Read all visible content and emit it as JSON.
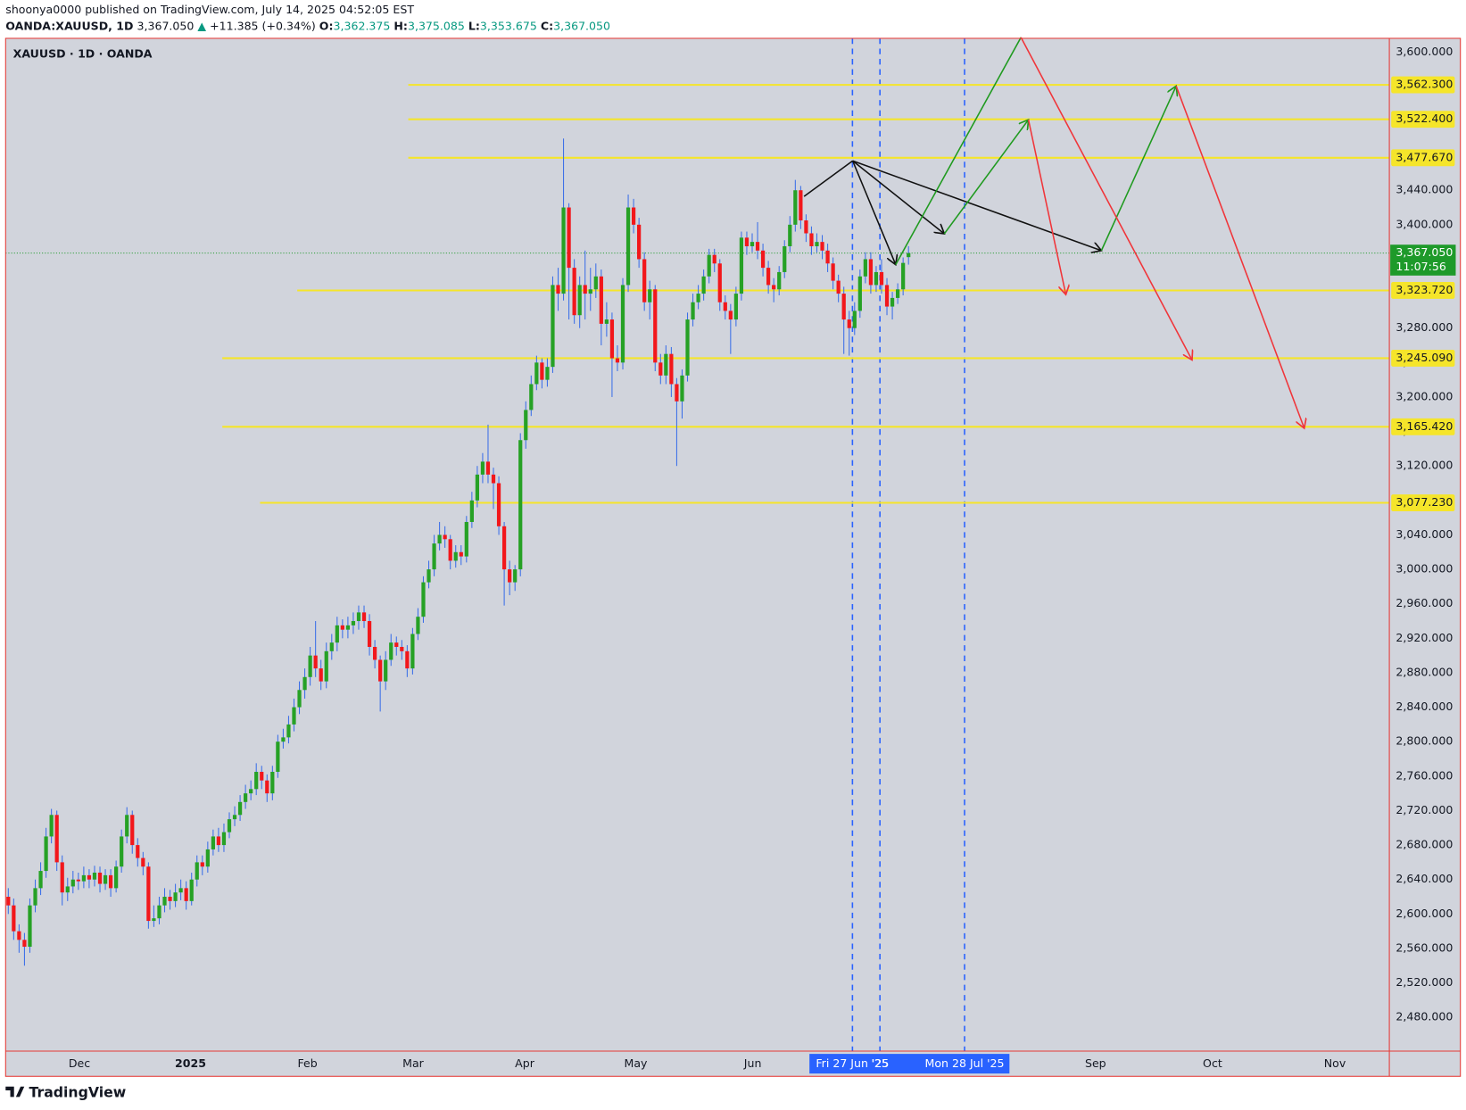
{
  "header": {
    "publisher": "shoonya0000 published on TradingView.com, July 14, 2025 04:52:05 EST",
    "symbol": "OANDA:XAUUSD, 1D",
    "price": "3,367.050",
    "arrow": "▲",
    "change": "+11.385 (+0.34%)",
    "ohlc": [
      [
        "O:",
        "3,362.375"
      ],
      [
        "H:",
        "3,375.085"
      ],
      [
        "L:",
        "3,353.675"
      ],
      [
        "C:",
        "3,367.050"
      ]
    ],
    "brand": "TradingView"
  },
  "chart_data": {
    "type": "candlestick",
    "title": "XAUUSD · 1D · OANDA",
    "up_color": "#26a125",
    "down_color": "#f2171b",
    "wick_color": "#3a6ee8",
    "open": [
      2620,
      2610,
      2580,
      2570,
      2562,
      2610,
      2630,
      2650,
      2690,
      2715,
      2660,
      2625,
      2632,
      2640,
      2638,
      2645,
      2640,
      2648,
      2635,
      2645,
      2630,
      2655,
      2690,
      2715,
      2680,
      2665,
      2655,
      2592,
      2595,
      2610,
      2620,
      2615,
      2625,
      2630,
      2615,
      2640,
      2660,
      2655,
      2675,
      2690,
      2680,
      2695,
      2710,
      2715,
      2730,
      2740,
      2745,
      2765,
      2755,
      2740,
      2765,
      2800,
      2805,
      2820,
      2840,
      2860,
      2875,
      2900,
      2885,
      2870,
      2905,
      2915,
      2935,
      2930,
      2935,
      2940,
      2950,
      2940,
      2910,
      2895,
      2870,
      2895,
      2915,
      2910,
      2905,
      2885,
      2925,
      2945,
      2985,
      3000,
      3030,
      3040,
      3035,
      3010,
      3020,
      3015,
      3055,
      3080,
      3110,
      3125,
      3110,
      3100,
      3050,
      3000,
      2985,
      3000,
      3150,
      3185,
      3215,
      3240,
      3220,
      3235,
      3330,
      3320,
      3420,
      3350,
      3295,
      3330,
      3320,
      3325,
      3340,
      3285,
      3290,
      3245,
      3240,
      3330,
      3420,
      3400,
      3360,
      3310,
      3325,
      3240,
      3225,
      3250,
      3215,
      3195,
      3225,
      3290,
      3310,
      3320,
      3340,
      3365,
      3355,
      3310,
      3300,
      3290,
      3320,
      3385,
      3375,
      3380,
      3370,
      3350,
      3330,
      3325,
      3345,
      3375,
      3400,
      3440,
      3405,
      3390,
      3375,
      3380,
      3370,
      3355,
      3335,
      3320,
      3290,
      3280,
      3300,
      3340,
      3360,
      3330,
      3345,
      3330,
      3305,
      3315,
      3325,
      3362.375
    ],
    "high": [
      2630,
      2618,
      2588,
      2578,
      2618,
      2640,
      2660,
      2700,
      2722,
      2720,
      2668,
      2642,
      2650,
      2648,
      2655,
      2652,
      2656,
      2655,
      2652,
      2652,
      2662,
      2698,
      2724,
      2720,
      2688,
      2672,
      2660,
      2610,
      2620,
      2630,
      2628,
      2635,
      2640,
      2638,
      2648,
      2668,
      2668,
      2684,
      2698,
      2700,
      2705,
      2718,
      2725,
      2738,
      2750,
      2755,
      2775,
      2772,
      2762,
      2772,
      2808,
      2815,
      2830,
      2850,
      2870,
      2885,
      2910,
      2940,
      2895,
      2915,
      2925,
      2945,
      2942,
      2945,
      2950,
      2958,
      2958,
      2948,
      2918,
      2900,
      2905,
      2925,
      2922,
      2918,
      2912,
      2932,
      2955,
      2992,
      3010,
      3040,
      3055,
      3050,
      3040,
      3028,
      3028,
      3062,
      3090,
      3120,
      3135,
      3168,
      3118,
      3108,
      3055,
      3010,
      3005,
      3158,
      3195,
      3225,
      3248,
      3245,
      3245,
      3340,
      3350,
      3500,
      3425,
      3360,
      3340,
      3370,
      3350,
      3355,
      3348,
      3310,
      3298,
      3260,
      3338,
      3435,
      3430,
      3408,
      3368,
      3335,
      3330,
      3250,
      3260,
      3258,
      3222,
      3232,
      3298,
      3320,
      3330,
      3348,
      3372,
      3372,
      3360,
      3318,
      3308,
      3328,
      3392,
      3392,
      3390,
      3403,
      3378,
      3358,
      3338,
      3352,
      3382,
      3410,
      3452,
      3445,
      3412,
      3398,
      3390,
      3388,
      3378,
      3362,
      3342,
      3328,
      3300,
      3310,
      3348,
      3368,
      3368,
      3352,
      3360,
      3338,
      3322,
      3332,
      3362,
      3375.085
    ],
    "low": [
      2600,
      2570,
      2555,
      2540,
      2555,
      2602,
      2622,
      2642,
      2682,
      2650,
      2610,
      2615,
      2624,
      2628,
      2630,
      2630,
      2632,
      2625,
      2628,
      2620,
      2625,
      2648,
      2682,
      2670,
      2655,
      2645,
      2583,
      2585,
      2588,
      2602,
      2605,
      2608,
      2616,
      2605,
      2610,
      2632,
      2645,
      2648,
      2668,
      2672,
      2672,
      2688,
      2702,
      2708,
      2722,
      2732,
      2738,
      2745,
      2730,
      2732,
      2758,
      2792,
      2798,
      2812,
      2832,
      2850,
      2865,
      2875,
      2860,
      2862,
      2895,
      2905,
      2920,
      2920,
      2925,
      2930,
      2932,
      2900,
      2885,
      2835,
      2860,
      2888,
      2900,
      2895,
      2875,
      2878,
      2918,
      2938,
      2978,
      2992,
      3022,
      3025,
      3000,
      3002,
      3005,
      3008,
      3048,
      3072,
      3100,
      3100,
      3070,
      3040,
      2958,
      2970,
      2975,
      2992,
      3140,
      3178,
      3208,
      3210,
      3212,
      3228,
      3300,
      3312,
      3290,
      3285,
      3280,
      3290,
      3300,
      3315,
      3260,
      3270,
      3200,
      3230,
      3232,
      3322,
      3390,
      3350,
      3300,
      3290,
      3230,
      3215,
      3215,
      3200,
      3120,
      3175,
      3218,
      3282,
      3302,
      3312,
      3332,
      3345,
      3300,
      3290,
      3250,
      3282,
      3312,
      3365,
      3368,
      3360,
      3340,
      3320,
      3310,
      3318,
      3338,
      3368,
      3392,
      3395,
      3380,
      3365,
      3368,
      3360,
      3345,
      3325,
      3310,
      3250,
      3248,
      3272,
      3292,
      3332,
      3320,
      3322,
      3320,
      3295,
      3290,
      3308,
      3318,
      3353.675
    ],
    "close": [
      2610,
      2580,
      2570,
      2562,
      2610,
      2630,
      2650,
      2690,
      2715,
      2660,
      2625,
      2632,
      2640,
      2638,
      2645,
      2640,
      2648,
      2635,
      2645,
      2630,
      2655,
      2690,
      2715,
      2680,
      2665,
      2655,
      2592,
      2595,
      2610,
      2620,
      2615,
      2625,
      2630,
      2615,
      2640,
      2660,
      2655,
      2675,
      2690,
      2680,
      2695,
      2710,
      2715,
      2730,
      2740,
      2745,
      2765,
      2755,
      2740,
      2765,
      2800,
      2805,
      2820,
      2840,
      2860,
      2875,
      2900,
      2885,
      2870,
      2905,
      2915,
      2935,
      2930,
      2935,
      2940,
      2950,
      2940,
      2910,
      2895,
      2870,
      2895,
      2915,
      2910,
      2905,
      2885,
      2925,
      2945,
      2985,
      3000,
      3030,
      3040,
      3035,
      3010,
      3020,
      3015,
      3055,
      3080,
      3110,
      3125,
      3110,
      3100,
      3050,
      3000,
      2985,
      3000,
      3150,
      3185,
      3215,
      3240,
      3220,
      3235,
      3330,
      3320,
      3420,
      3350,
      3295,
      3330,
      3320,
      3325,
      3340,
      3285,
      3290,
      3245,
      3240,
      3330,
      3420,
      3400,
      3360,
      3310,
      3325,
      3240,
      3225,
      3250,
      3215,
      3195,
      3225,
      3290,
      3310,
      3320,
      3340,
      3365,
      3355,
      3310,
      3300,
      3290,
      3320,
      3385,
      3375,
      3380,
      3370,
      3350,
      3330,
      3325,
      3345,
      3375,
      3400,
      3440,
      3405,
      3390,
      3375,
      3380,
      3370,
      3355,
      3335,
      3320,
      3290,
      3280,
      3300,
      3340,
      3360,
      3330,
      3345,
      3330,
      3305,
      3315,
      3325,
      3355.665,
      3367.05
    ],
    "xlim": [
      -0.5,
      256.2
    ],
    "xticks": [
      {
        "value": 13.2,
        "label": "Dec"
      },
      {
        "value": 33.8,
        "label": "2025"
      },
      {
        "value": 55.5,
        "label": "Feb"
      },
      {
        "value": 75.1,
        "label": "Mar"
      },
      {
        "value": 95.8,
        "label": "Apr"
      },
      {
        "value": 116.4,
        "label": "May"
      },
      {
        "value": 138.1,
        "label": "Jun"
      },
      {
        "value": 201.7,
        "label": "Sep"
      },
      {
        "value": 223.4,
        "label": "Oct"
      },
      {
        "value": 246.1,
        "label": "Nov"
      }
    ],
    "markers": [
      {
        "value": 156.6,
        "label": "Fri 27 Jun '25"
      },
      {
        "value": 161.7,
        "label": "'25"
      },
      {
        "value": 177.4,
        "label": "Mon 28 Jul '25"
      }
    ],
    "ylim": [
      2440.9,
      3616.3
    ],
    "yticks": [
      {
        "value": 3600,
        "label": "3,600.000"
      },
      {
        "value": 3560,
        "label": "3,560.000"
      },
      {
        "value": 3520,
        "label": "3,520.000"
      },
      {
        "value": 3480,
        "label": "3,480.000"
      },
      {
        "value": 3440,
        "label": "3,440.000"
      },
      {
        "value": 3400,
        "label": "3,400.000"
      },
      {
        "value": 3360,
        "label": "3,360.000"
      },
      {
        "value": 3320,
        "label": "3,320.000"
      },
      {
        "value": 3280,
        "label": "3,280.000"
      },
      {
        "value": 3240,
        "label": "3,240.000"
      },
      {
        "value": 3200,
        "label": "3,200.000"
      },
      {
        "value": 3160,
        "label": "3,160.000"
      },
      {
        "value": 3120,
        "label": "3,120.000"
      },
      {
        "value": 3080,
        "label": "3,080.000"
      },
      {
        "value": 3040,
        "label": "3,040.000"
      },
      {
        "value": 3000,
        "label": "3,000.000"
      },
      {
        "value": 2960,
        "label": "2,960.000"
      },
      {
        "value": 2920,
        "label": "2,920.000"
      },
      {
        "value": 2880,
        "label": "2,880.000"
      },
      {
        "value": 2840,
        "label": "2,840.000"
      },
      {
        "value": 2800,
        "label": "2,800.000"
      },
      {
        "value": 2760,
        "label": "2,760.000"
      },
      {
        "value": 2720,
        "label": "2,720.000"
      },
      {
        "value": 2680,
        "label": "2,680.000"
      },
      {
        "value": 2640,
        "label": "2,640.000"
      },
      {
        "value": 2600,
        "label": "2,600.000"
      },
      {
        "value": 2560,
        "label": "2,560.000"
      },
      {
        "value": 2520,
        "label": "2,520.000"
      },
      {
        "value": 2480,
        "label": "2,480.000"
      }
    ],
    "levels": [
      {
        "value": 3562.3,
        "label": "3,562.300",
        "start": 74.2
      },
      {
        "value": 3522.4,
        "label": "3,522.400",
        "start": 74.2
      },
      {
        "value": 3477.67,
        "label": "3,477.670",
        "start": 74.2
      },
      {
        "value": 3323.72,
        "label": "3,323.720",
        "start": 53.6
      },
      {
        "value": 3245.09,
        "label": "3,245.090",
        "start": 39.7
      },
      {
        "value": 3165.42,
        "label": "3,165.420",
        "start": 39.7
      },
      {
        "value": 3077.23,
        "label": "3,077.230",
        "start": 46.7
      }
    ],
    "level_color": "#f5e52a",
    "last_price": {
      "value": 3367.05,
      "label": "3,367.050",
      "countdown": "11:07:56",
      "color": "#1e9a2a"
    }
  }
}
